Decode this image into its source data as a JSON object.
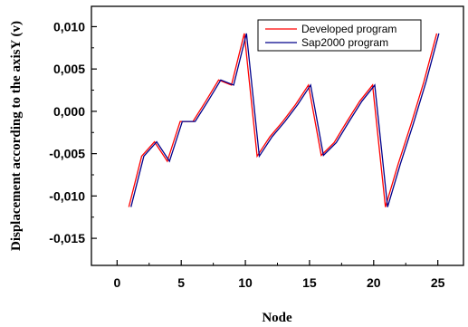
{
  "chart_data": {
    "type": "line",
    "title": "",
    "xlabel": "Node",
    "ylabel": "Displacement according to the axisY (v)",
    "xlim": [
      -2,
      27
    ],
    "ylim": [
      -0.0182,
      0.0124
    ],
    "x_ticks": [
      0,
      5,
      10,
      15,
      20,
      25
    ],
    "x_tick_labels": [
      "0",
      "5",
      "10",
      "15",
      "20",
      "25"
    ],
    "y_ticks": [
      0.01,
      0.005,
      0.0,
      -0.005,
      -0.01,
      -0.015
    ],
    "y_tick_labels": [
      "0,010",
      "0,005",
      "0,000",
      "-0,005",
      "-0,010",
      "-0,015"
    ],
    "grid": false,
    "legend_position": "top-right",
    "x": [
      1,
      2,
      3,
      4,
      5,
      6,
      7,
      8,
      9,
      10,
      11,
      12,
      13,
      14,
      15,
      16,
      17,
      18,
      19,
      20,
      21,
      22,
      23,
      24,
      25
    ],
    "series": [
      {
        "name": "Developed program",
        "color": "#ff0000",
        "values": [
          -0.0113,
          -0.0053,
          -0.0036,
          -0.0059,
          -0.0012,
          -0.0012,
          0.0012,
          0.0037,
          0.0031,
          0.0092,
          -0.0053,
          -0.003,
          -0.0012,
          0.0008,
          0.0031,
          -0.0052,
          -0.0037,
          -0.0012,
          0.0012,
          0.0031,
          -0.0113,
          -0.0062,
          -0.0015,
          0.0035,
          0.0092
        ]
      },
      {
        "name": "Sap2000 program",
        "color": "#00008b",
        "values": [
          -0.0113,
          -0.0053,
          -0.0036,
          -0.0059,
          -0.0012,
          -0.0012,
          0.0012,
          0.0037,
          0.0031,
          0.0092,
          -0.0053,
          -0.003,
          -0.0012,
          0.0008,
          0.0031,
          -0.0052,
          -0.0037,
          -0.0012,
          0.0012,
          0.0031,
          -0.0113,
          -0.0062,
          -0.0015,
          0.0035,
          0.0092
        ]
      }
    ]
  }
}
